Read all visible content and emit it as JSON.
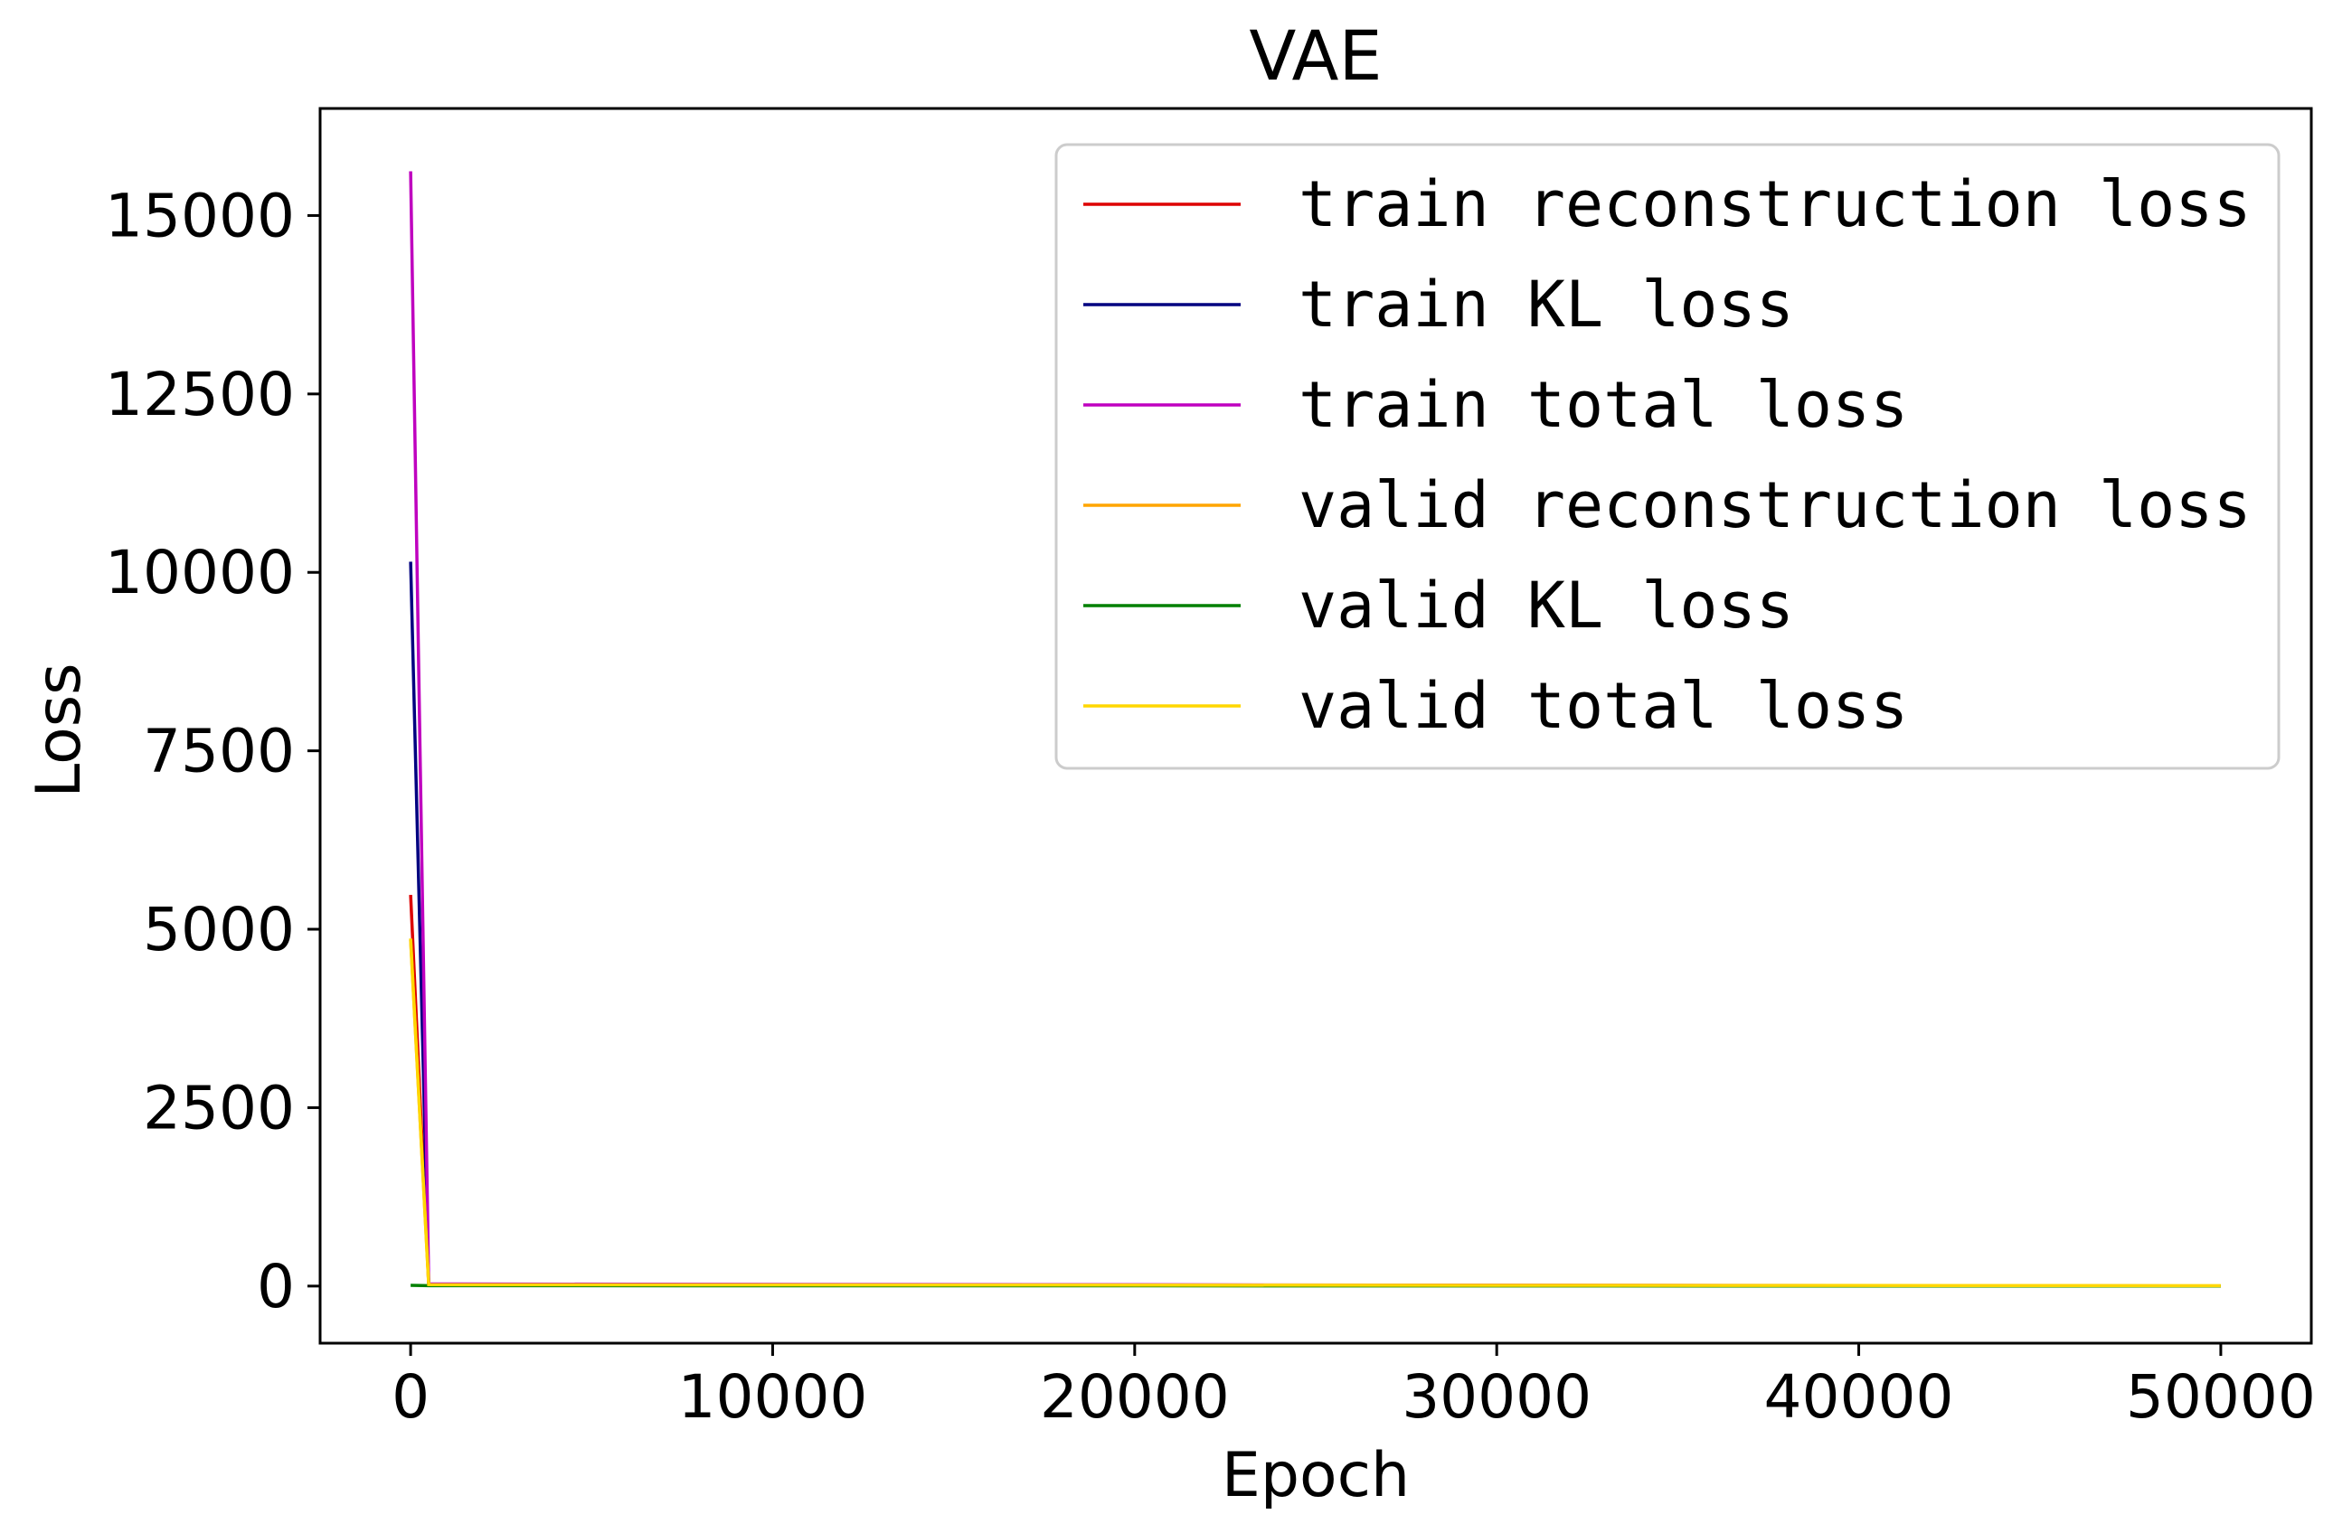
{
  "chart_data": {
    "type": "line",
    "title": "VAE",
    "xlabel": "Epoch",
    "ylabel": "Loss",
    "xlim": [
      -2500,
      52500
    ],
    "ylim": [
      -800,
      16500
    ],
    "xticks": [
      0,
      10000,
      20000,
      30000,
      40000,
      50000
    ],
    "xtick_labels": [
      "0",
      "10000",
      "20000",
      "30000",
      "40000",
      "50000"
    ],
    "yticks": [
      0,
      2500,
      5000,
      7500,
      10000,
      12500,
      15000
    ],
    "ytick_labels": [
      "0",
      "2500",
      "5000",
      "7500",
      "10000",
      "12500",
      "15000"
    ],
    "grid": false,
    "legend_position": "upper-right",
    "series": [
      {
        "name": "train reconstruction loss",
        "color": "#dd0000",
        "x": [
          0,
          500,
          50000
        ],
        "y": [
          5480,
          25,
          0
        ]
      },
      {
        "name": "train KL loss",
        "color": "#000080",
        "x": [
          0,
          500,
          50000
        ],
        "y": [
          10150,
          20,
          0
        ]
      },
      {
        "name": "train total loss",
        "color": "#bf00bf",
        "x": [
          0,
          500,
          50000
        ],
        "y": [
          15620,
          30,
          0
        ]
      },
      {
        "name": "valid reconstruction loss",
        "color": "#ffa500",
        "x": [
          0,
          500,
          50000
        ],
        "y": [
          4850,
          15,
          0
        ]
      },
      {
        "name": "valid KL loss",
        "color": "#008000",
        "x": [
          0,
          500,
          50000
        ],
        "y": [
          10,
          5,
          0
        ]
      },
      {
        "name": "valid total loss",
        "color": "#ffd700",
        "x": [
          0,
          500,
          50000
        ],
        "y": [
          4870,
          20,
          5
        ]
      }
    ]
  }
}
